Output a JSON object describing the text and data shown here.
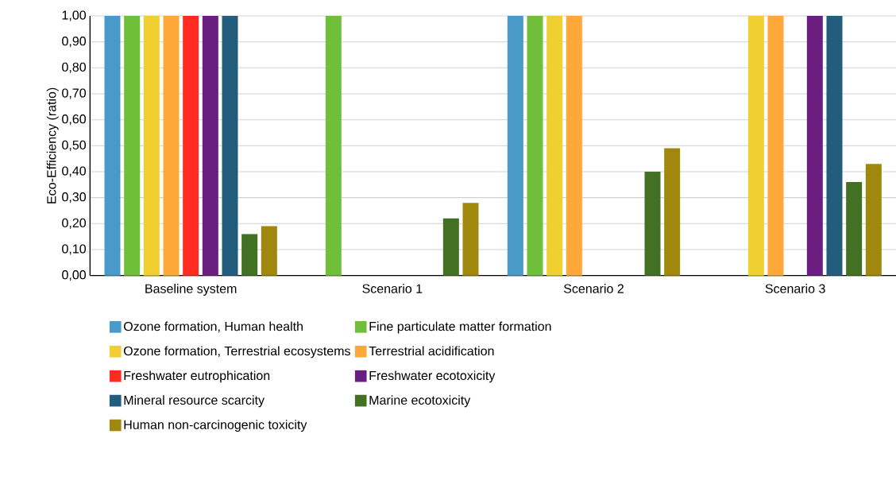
{
  "chart_data": {
    "type": "bar",
    "ylabel": "Eco-Efficiency (ratio)",
    "categories": [
      "Baseline system",
      "Scenario 1",
      "Scenario 2",
      "Scenario 3"
    ],
    "series": [
      {
        "name": "Ozone formation, Human health",
        "color": "#4a9ac9",
        "values": [
          1.0,
          null,
          1.0,
          null
        ]
      },
      {
        "name": "Fine particulate matter formation",
        "color": "#70bf3a",
        "values": [
          1.0,
          1.0,
          1.0,
          null
        ]
      },
      {
        "name": "Ozone formation, Terrestrial ecosystems",
        "color": "#f0d030",
        "values": [
          1.0,
          null,
          1.0,
          1.0
        ]
      },
      {
        "name": "Terrestrial acidification",
        "color": "#ffa83a",
        "values": [
          1.0,
          null,
          1.0,
          1.0
        ]
      },
      {
        "name": "Freshwater eutrophication",
        "color": "#ff2a20",
        "values": [
          1.0,
          null,
          null,
          null
        ]
      },
      {
        "name": "Freshwater ecotoxicity",
        "color": "#6a1f80",
        "values": [
          1.0,
          null,
          null,
          1.0
        ]
      },
      {
        "name": "Mineral resource scarcity",
        "color": "#235d7e",
        "values": [
          1.0,
          null,
          null,
          1.0
        ]
      },
      {
        "name": "Marine ecotoxicity",
        "color": "#427124",
        "values": [
          0.16,
          0.22,
          0.4,
          0.36
        ]
      },
      {
        "name": "Human non-carcinogenic toxicity",
        "color": "#a0870e",
        "values": [
          0.19,
          0.28,
          0.49,
          0.43
        ]
      }
    ],
    "ylim": [
      0,
      1.0
    ],
    "yticks": [
      {
        "value": 0,
        "label": "0,00"
      },
      {
        "value": 0.1,
        "label": "0,10"
      },
      {
        "value": 0.2,
        "label": "0,20"
      },
      {
        "value": 0.3,
        "label": "0,30"
      },
      {
        "value": 0.4,
        "label": "0,40"
      },
      {
        "value": 0.5,
        "label": "0,50"
      },
      {
        "value": 0.6,
        "label": "0,60"
      },
      {
        "value": 0.7,
        "label": "0,70"
      },
      {
        "value": 0.8,
        "label": "0,80"
      },
      {
        "value": 0.9,
        "label": "0,90"
      },
      {
        "value": 1.0,
        "label": "1,00"
      }
    ],
    "grid": "y",
    "legend": "bottom"
  }
}
